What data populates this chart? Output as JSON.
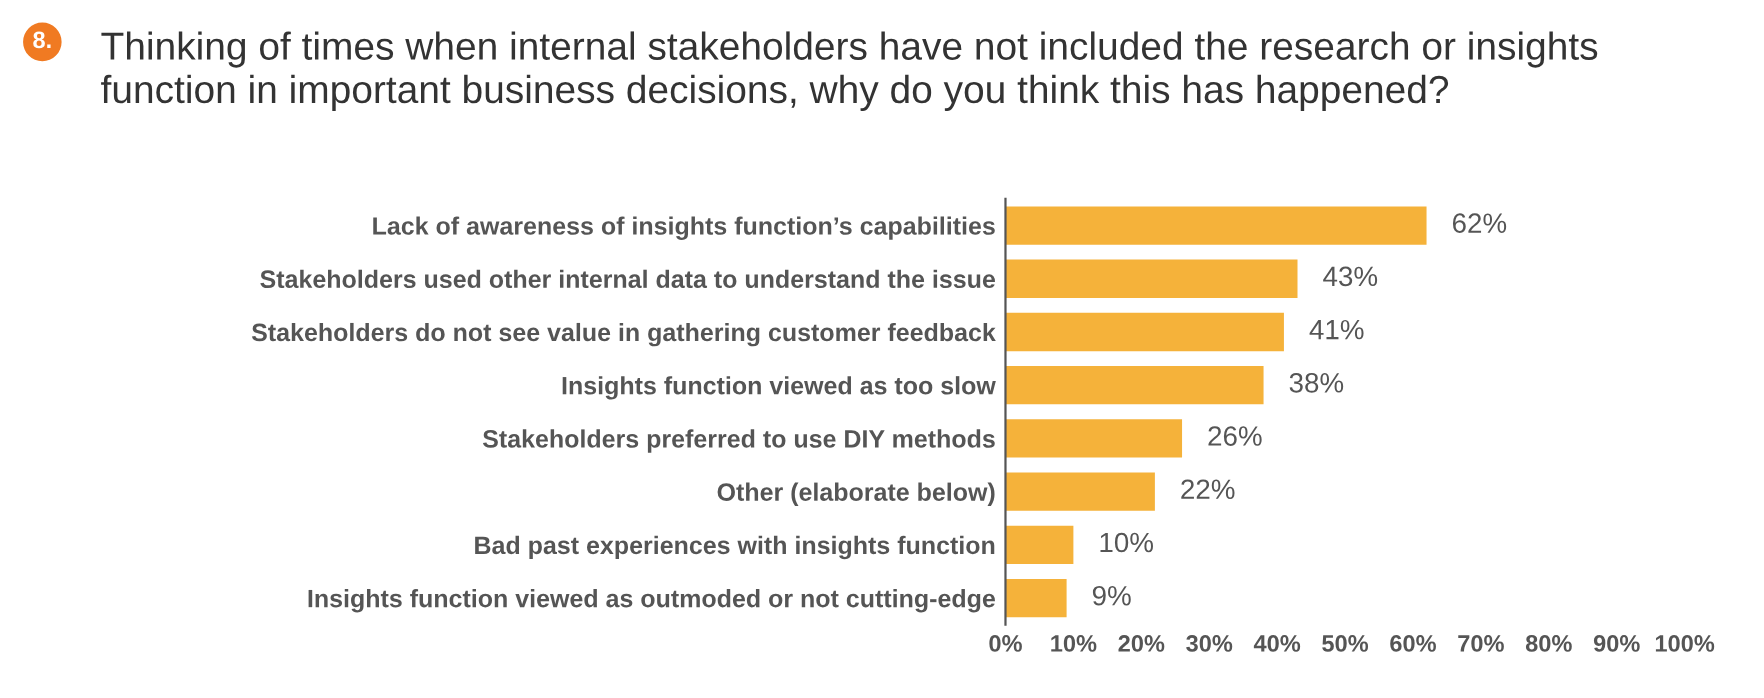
{
  "chart_data": {
    "type": "bar",
    "orientation": "horizontal",
    "title": "Thinking of times when internal stakeholders have not included the research or insights\nfunction in important business decisions, why do you think this has happened?",
    "annotations": [
      "8."
    ],
    "categories": [
      "Lack of awareness of insights function’s capabilities",
      "Stakeholders used other internal data to understand the issue",
      "Stakeholders do not see value in gathering customer feedback",
      "Insights function viewed as too slow",
      "Stakeholders preferred to use DIY methods",
      "Other (elaborate below)",
      "Bad past experiences with insights function",
      "Insights function viewed as outmoded or not cutting-edge"
    ],
    "values": [
      62,
      43,
      41,
      38,
      26,
      22,
      10,
      9
    ],
    "value_labels": [
      "62%",
      "43%",
      "41%",
      "38%",
      "26%",
      "22%",
      "10%",
      "9%"
    ],
    "color": "#f5b23a",
    "xlim": [
      0,
      100
    ],
    "xticks": [
      {
        "value": 0,
        "label": "0%"
      },
      {
        "value": 10,
        "label": "10%"
      },
      {
        "value": 20,
        "label": "20%"
      },
      {
        "value": 30,
        "label": "30%"
      },
      {
        "value": 40,
        "label": "40%"
      },
      {
        "value": 50,
        "label": "50%"
      },
      {
        "value": 60,
        "label": "60%"
      },
      {
        "value": 70,
        "label": "70%"
      },
      {
        "value": 80,
        "label": "80%"
      },
      {
        "value": 90,
        "label": "90%"
      },
      {
        "value": 100,
        "label": "100%"
      }
    ],
    "grid": false,
    "legend": false
  }
}
